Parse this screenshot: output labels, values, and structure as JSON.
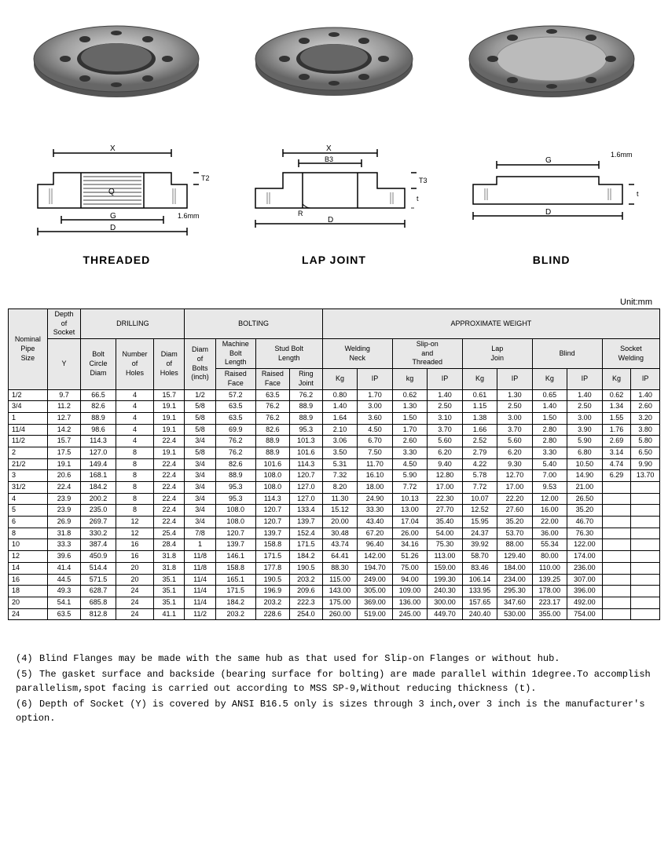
{
  "labels": {
    "threaded": "THREADED",
    "lapjoint": "LAP JOINT",
    "blind": "BLIND",
    "unit": "Unit:mm"
  },
  "diagram_annotations": {
    "threaded": {
      "X": "X",
      "Q": "Q",
      "G": "G",
      "D": "D",
      "T2": "T2",
      "dim": "1.6mm"
    },
    "lapjoint": {
      "X": "X",
      "B3": "B3",
      "R": "R",
      "D": "D",
      "T3": "T3",
      "t": "t"
    },
    "blind": {
      "G": "G",
      "D": "D",
      "dim": "1.6mm",
      "t": "t"
    }
  },
  "colors": {
    "header_bg": "#e8e8e8",
    "border": "#000000",
    "flange_fill": "#b8b8b8",
    "flange_dark": "#888888"
  },
  "table": {
    "header": {
      "col1": "Nominal\nPipe\nSize",
      "col2": "Depth\nof\nSocket",
      "colY": "Y",
      "drilling": "DRILLING",
      "bolting": "BOLTING",
      "weight": "APPROXIMATE WEIGHT",
      "boltCircle": "Bolt\nCircle\nDiam",
      "numHoles": "Number\nof\nHoles",
      "diamHoles": "Diam\nof\nHoles",
      "diamBolts": "Diam\nof\nBolts\n(inch)",
      "machBolt": "Machine\nBolt\nLength",
      "studBolt": "Stud Bolt\nLength",
      "raisedFace": "Raised\nFace",
      "ringJoint": "Ring\nJoint",
      "weldNeck": "Welding\nNeck",
      "slipOn": "Slip-on\nand\nThreaded",
      "lapJoin": "Lap\nJoin",
      "blind": "Blind",
      "socketWeld": "Socket\nWelding",
      "kg": "Kg",
      "kglow": "kg",
      "ip": "IP"
    },
    "groups": [
      [
        [
          "1/2",
          "9.7",
          "66.5",
          "4",
          "15.7",
          "1/2",
          "57.2",
          "63.5",
          "76.2",
          "0.80",
          "1.70",
          "0.62",
          "1.40",
          "0.61",
          "1.30",
          "0.65",
          "1.40",
          "0.62",
          "1.40"
        ],
        [
          "3/4",
          "11.2",
          "82.6",
          "4",
          "19.1",
          "5/8",
          "63.5",
          "76.2",
          "88.9",
          "1.40",
          "3.00",
          "1.30",
          "2.50",
          "1.15",
          "2.50",
          "1.40",
          "2.50",
          "1.34",
          "2.60"
        ],
        [
          "1",
          "12.7",
          "88.9",
          "4",
          "19.1",
          "5/8",
          "63.5",
          "76.2",
          "88.9",
          "1.64",
          "3.60",
          "1.50",
          "3.10",
          "1.38",
          "3.00",
          "1.50",
          "3.00",
          "1.55",
          "3.20"
        ]
      ],
      [
        [
          "11/4",
          "14.2",
          "98.6",
          "4",
          "19.1",
          "5/8",
          "69.9",
          "82.6",
          "95.3",
          "2.10",
          "4.50",
          "1.70",
          "3.70",
          "1.66",
          "3.70",
          "2.80",
          "3.90",
          "1.76",
          "3.80"
        ],
        [
          "11/2",
          "15.7",
          "114.3",
          "4",
          "22.4",
          "3/4",
          "76.2",
          "88.9",
          "101.3",
          "3.06",
          "6.70",
          "2.60",
          "5.60",
          "2.52",
          "5.60",
          "2.80",
          "5.90",
          "2.69",
          "5.80"
        ],
        [
          "2",
          "17.5",
          "127.0",
          "8",
          "19.1",
          "5/8",
          "76.2",
          "88.9",
          "101.6",
          "3.50",
          "7.50",
          "3.30",
          "6.20",
          "2.79",
          "6.20",
          "3.30",
          "6.80",
          "3.14",
          "6.50"
        ]
      ],
      [
        [
          "21/2",
          "19.1",
          "149.4",
          "8",
          "22.4",
          "3/4",
          "82.6",
          "101.6",
          "114.3",
          "5.31",
          "11.70",
          "4.50",
          "9.40",
          "4.22",
          "9.30",
          "5.40",
          "10.50",
          "4.74",
          "9.90"
        ],
        [
          "3",
          "20.6",
          "168.1",
          "8",
          "22.4",
          "3/4",
          "88.9",
          "108.0",
          "120.7",
          "7.32",
          "16.10",
          "5.90",
          "12.80",
          "5.78",
          "12.70",
          "7.00",
          "14.90",
          "6.29",
          "13.70"
        ],
        [
          "31/2",
          "22.4",
          "184.2",
          "8",
          "22.4",
          "3/4",
          "95.3",
          "108.0",
          "127.0",
          "8.20",
          "18.00",
          "7.72",
          "17.00",
          "7.72",
          "17.00",
          "9.53",
          "21.00",
          "",
          ""
        ]
      ],
      [
        [
          "4",
          "23.9",
          "200.2",
          "8",
          "22.4",
          "3/4",
          "95.3",
          "114.3",
          "127.0",
          "11.30",
          "24.90",
          "10.13",
          "22.30",
          "10.07",
          "22.20",
          "12.00",
          "26.50",
          "",
          ""
        ],
        [
          "5",
          "23.9",
          "235.0",
          "8",
          "22.4",
          "3/4",
          "108.0",
          "120.7",
          "133.4",
          "15.12",
          "33.30",
          "13.00",
          "27.70",
          "12.52",
          "27.60",
          "16.00",
          "35.20",
          "",
          ""
        ],
        [
          "6",
          "26.9",
          "269.7",
          "12",
          "22.4",
          "3/4",
          "108.0",
          "120.7",
          "139.7",
          "20.00",
          "43.40",
          "17.04",
          "35.40",
          "15.95",
          "35.20",
          "22.00",
          "46.70",
          "",
          ""
        ]
      ],
      [
        [
          "8",
          "31.8",
          "330.2",
          "12",
          "25.4",
          "7/8",
          "120.7",
          "139.7",
          "152.4",
          "30.48",
          "67.20",
          "26.00",
          "54.00",
          "24.37",
          "53.70",
          "36.00",
          "76.30",
          "",
          ""
        ],
        [
          "10",
          "33.3",
          "387.4",
          "16",
          "28.4",
          "1",
          "139.7",
          "158.8",
          "171.5",
          "43.74",
          "96.40",
          "34.16",
          "75.30",
          "39.92",
          "88.00",
          "55.34",
          "122.00",
          "",
          ""
        ],
        [
          "12",
          "39.6",
          "450.9",
          "16",
          "31.8",
          "11/8",
          "146.1",
          "171.5",
          "184.2",
          "64.41",
          "142.00",
          "51.26",
          "113.00",
          "58.70",
          "129.40",
          "80.00",
          "174.00",
          "",
          ""
        ]
      ],
      [
        [
          "14",
          "41.4",
          "514.4",
          "20",
          "31.8",
          "11/8",
          "158.8",
          "177.8",
          "190.5",
          "88.30",
          "194.70",
          "75.00",
          "159.00",
          "83.46",
          "184.00",
          "110.00",
          "236.00",
          "",
          ""
        ],
        [
          "16",
          "44.5",
          "571.5",
          "20",
          "35.1",
          "11/4",
          "165.1",
          "190.5",
          "203.2",
          "115.00",
          "249.00",
          "94.00",
          "199.30",
          "106.14",
          "234.00",
          "139.25",
          "307.00",
          "",
          ""
        ],
        [
          "18",
          "49.3",
          "628.7",
          "24",
          "35.1",
          "11/4",
          "171.5",
          "196.9",
          "209.6",
          "143.00",
          "305.00",
          "109.00",
          "240.30",
          "133.95",
          "295.30",
          "178.00",
          "396.00",
          "",
          ""
        ]
      ],
      [
        [
          "20",
          "54.1",
          "685.8",
          "24",
          "35.1",
          "11/4",
          "184.2",
          "203.2",
          "222.3",
          "175.00",
          "369.00",
          "136.00",
          "300.00",
          "157.65",
          "347.60",
          "223.17",
          "492.00",
          "",
          ""
        ],
        [
          "24",
          "63.5",
          "812.8",
          "24",
          "41.1",
          "11/2",
          "203.2",
          "228.6",
          "254.0",
          "260.00",
          "519.00",
          "245.00",
          "449.70",
          "240.40",
          "530.00",
          "355.00",
          "754.00",
          "",
          ""
        ]
      ]
    ]
  },
  "notes": [
    {
      "n": "(4)",
      "t": "Blind Flanges may be made with the same hub as that used for Slip-on Flanges or without hub."
    },
    {
      "n": "(5)",
      "t": "The gasket surface and backside (bearing surface for bolting) are made parallel within 1degree.To accomplish parallelism,spot facing is carried out according to MSS SP-9,Without reducing thickness (t)."
    },
    {
      "n": "(6)",
      "t": "Depth of Socket (Y) is covered by ANSI B16.5 only is sizes through 3 inch,over 3 inch is the manufacturer's option."
    }
  ]
}
